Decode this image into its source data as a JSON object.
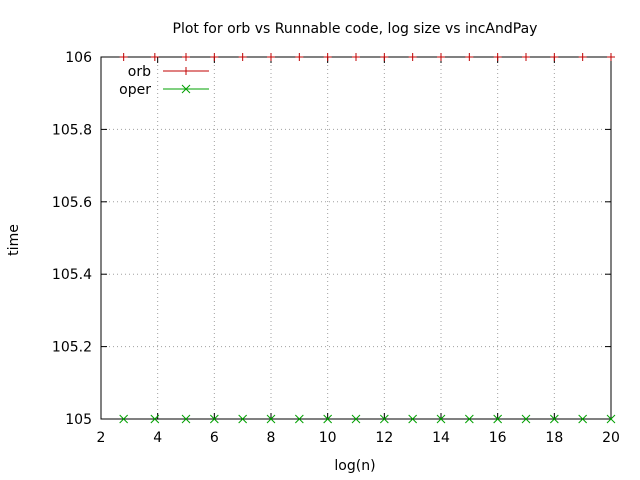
{
  "chart_data": {
    "type": "line",
    "title": "Plot for orb vs Runnable code, log size vs incAndPay",
    "xlabel": "log(n)",
    "ylabel": "time",
    "xlim": [
      2,
      20
    ],
    "ylim": [
      105,
      106
    ],
    "xticks": [
      2,
      4,
      6,
      8,
      10,
      12,
      14,
      16,
      18,
      20
    ],
    "yticks": [
      105,
      105.2,
      105.4,
      105.6,
      105.8,
      106
    ],
    "ytick_labels": [
      "105",
      "105.2",
      "105.4",
      "105.6",
      "105.8",
      "106"
    ],
    "grid": true,
    "legend_position": "top-left",
    "series": [
      {
        "name": "orb",
        "color": "#c00000",
        "marker": "plus",
        "x": [
          2.8,
          3.9,
          5,
          6,
          7,
          8,
          9,
          10,
          11,
          12,
          13,
          14,
          15,
          16,
          17,
          18,
          19,
          20
        ],
        "y": [
          106,
          106,
          106,
          106,
          106,
          106,
          106,
          106,
          106,
          106,
          106,
          106,
          106,
          106,
          106,
          106,
          106,
          106
        ]
      },
      {
        "name": "oper",
        "color": "#00a000",
        "marker": "cross",
        "x": [
          2.8,
          3.9,
          5,
          6,
          7,
          8,
          9,
          10,
          11,
          12,
          13,
          14,
          15,
          16,
          17,
          18,
          19,
          20
        ],
        "y": [
          105,
          105,
          105,
          105,
          105,
          105,
          105,
          105,
          105,
          105,
          105,
          105,
          105,
          105,
          105,
          105,
          105,
          105
        ]
      }
    ]
  }
}
